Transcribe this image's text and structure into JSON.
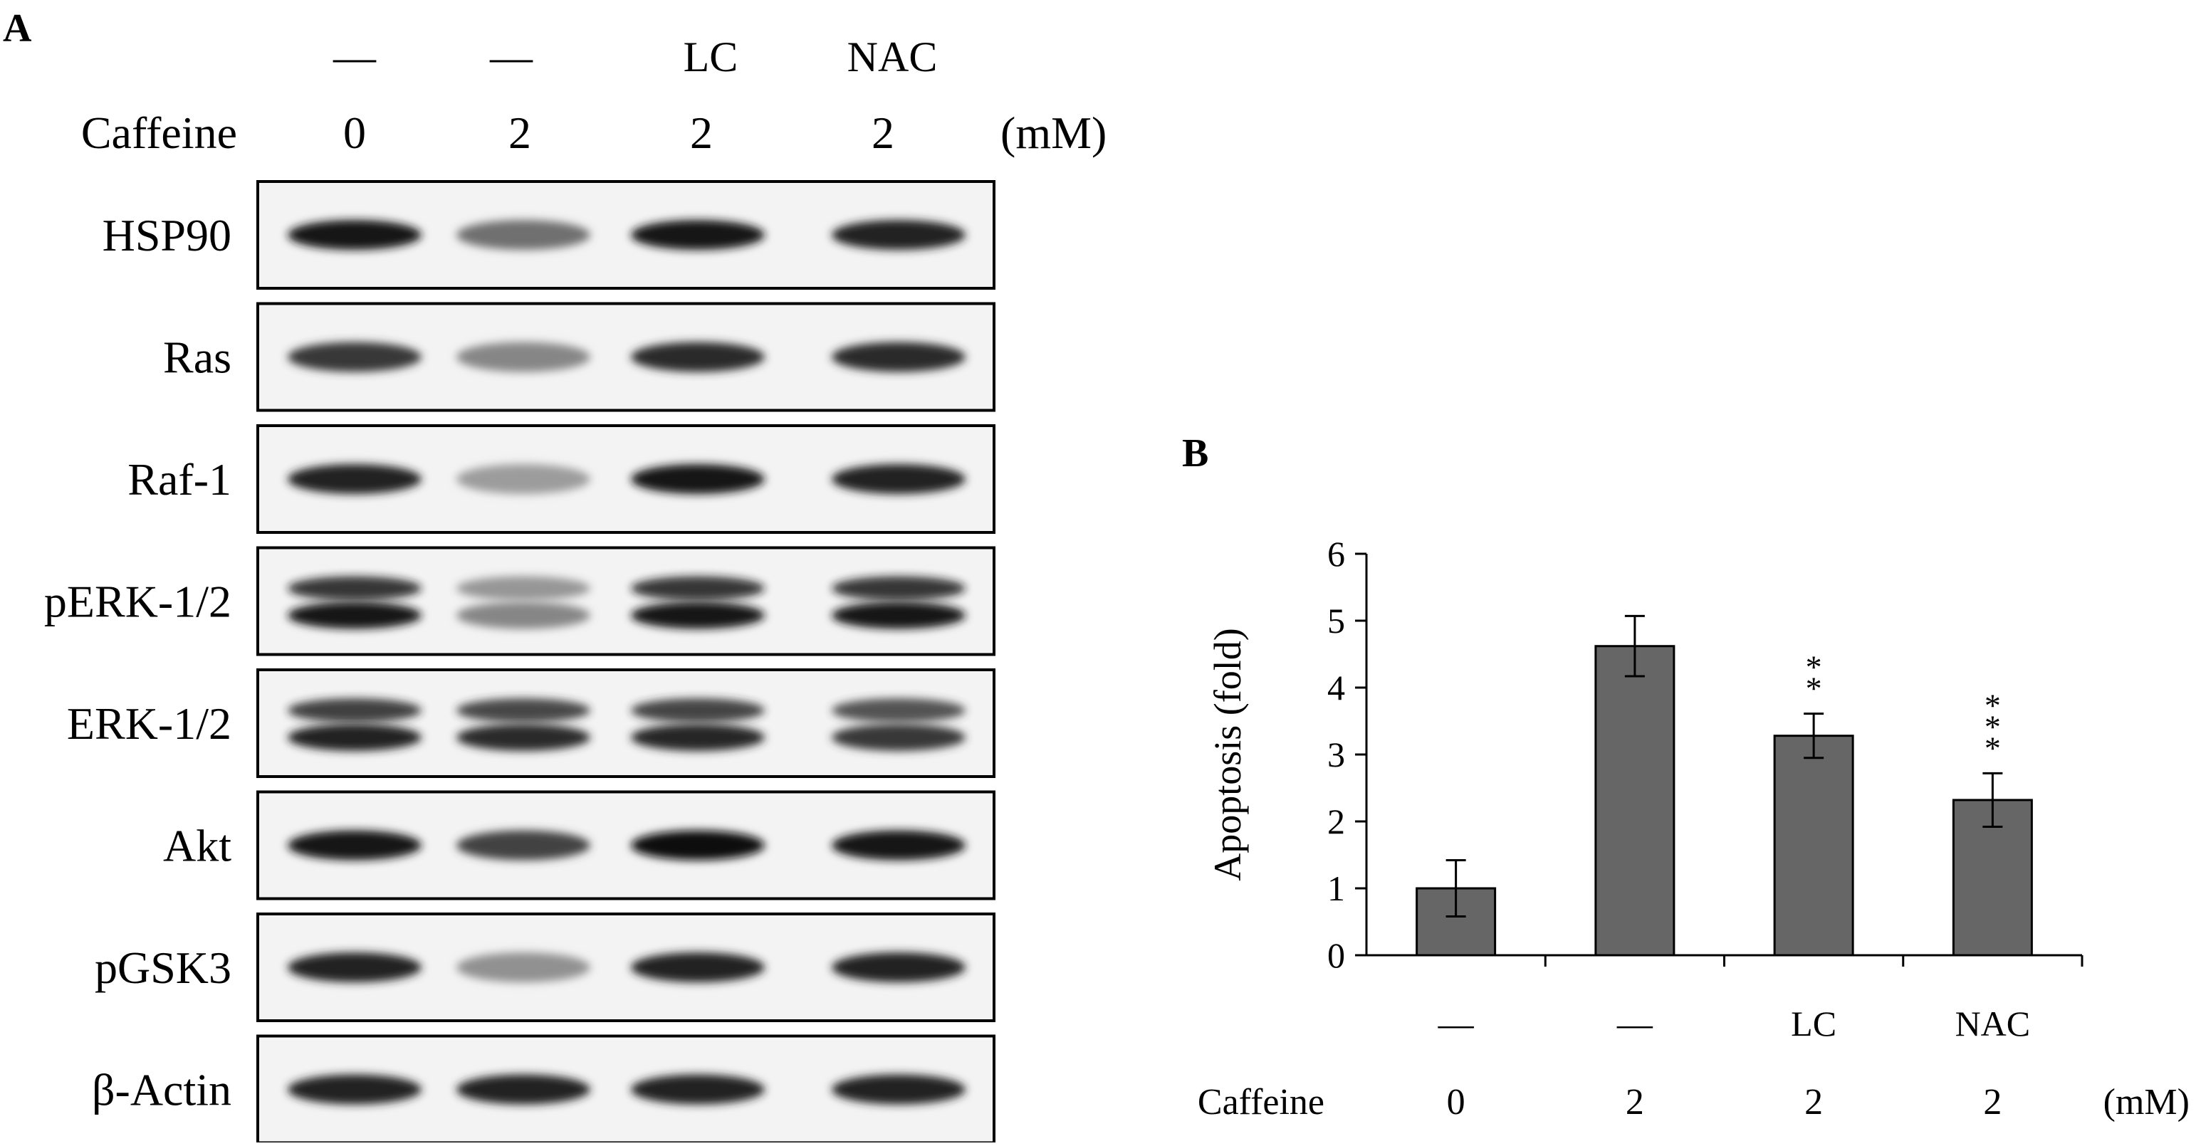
{
  "panel_a": {
    "label": "A",
    "treatments": [
      "—",
      "—",
      "LC",
      "NAC"
    ],
    "caffeine_label": "Caffeine",
    "doses": [
      "0",
      "2",
      "2",
      "2"
    ],
    "unit": "(mM)",
    "blots": [
      {
        "label": "HSP90",
        "bands": [
          0.95,
          0.55,
          0.95,
          0.9
        ],
        "double": false
      },
      {
        "label": "Ras",
        "bands": [
          0.8,
          0.45,
          0.85,
          0.85
        ],
        "double": false
      },
      {
        "label": "Raf-1",
        "bands": [
          0.9,
          0.35,
          0.95,
          0.9
        ],
        "double": false
      },
      {
        "label": "pERK-1/2",
        "bands": [
          0.95,
          0.45,
          0.95,
          0.95
        ],
        "double": true
      },
      {
        "label": "ERK-1/2",
        "bands": [
          0.9,
          0.85,
          0.88,
          0.8
        ],
        "double": true
      },
      {
        "label": "Akt",
        "bands": [
          0.95,
          0.75,
          0.98,
          0.95
        ],
        "double": false
      },
      {
        "label": "pGSK3",
        "bands": [
          0.9,
          0.4,
          0.9,
          0.9
        ],
        "double": false
      },
      {
        "label": "β-Actin",
        "bands": [
          0.9,
          0.9,
          0.9,
          0.9
        ],
        "double": false
      }
    ]
  },
  "panel_b": {
    "label": "B"
  },
  "chart_data": {
    "type": "bar",
    "categories": [
      "—",
      "—",
      "LC",
      "NAC"
    ],
    "doses": [
      "0",
      "2",
      "2",
      "2"
    ],
    "caffeine_label": "Caffeine",
    "unit": "(mM)",
    "values": [
      1.0,
      4.62,
      3.28,
      2.32
    ],
    "errors": [
      0.42,
      0.45,
      0.33,
      0.4
    ],
    "significance": [
      "",
      "",
      "**",
      "***"
    ],
    "ylabel": "Apoptosis (fold)",
    "ylim": [
      0,
      6
    ],
    "yticks": [
      "0",
      "1",
      "2",
      "3",
      "4",
      "5",
      "6"
    ],
    "bar_color": "#666666",
    "grid": false
  }
}
